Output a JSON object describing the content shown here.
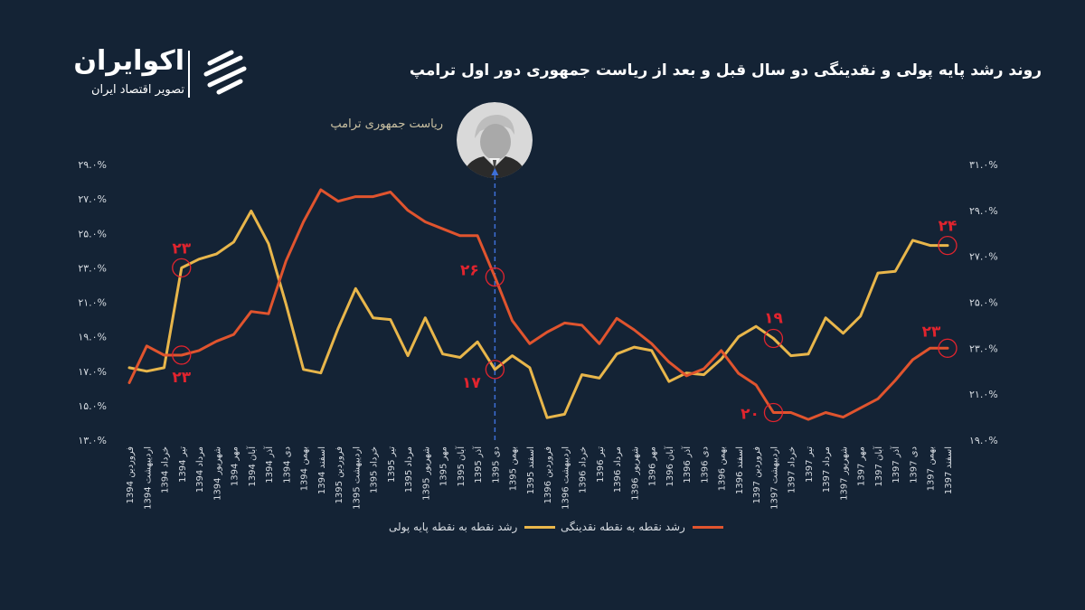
{
  "brand": {
    "name": "اکوایران",
    "tagline": "تصویر اقتصاد ایران"
  },
  "title": "روند رشد پایه پولی و نقدینگی دو سال قبل و بعد از ریاست جمهوری دور اول ترامپ",
  "annotation_label": "ریاست جمهوری ترامپ",
  "colors": {
    "background": "#142335",
    "base_money": "#e8b64b",
    "liquidity": "#e0542e",
    "marker": "#e0242e",
    "annotation_line": "#3d6fd8"
  },
  "chart_data": {
    "type": "line",
    "categories": [
      "فروردین 1394",
      "اردیبهشت 1394",
      "خرداد 1394",
      "تیر 1394",
      "مرداد 1394",
      "شهریور 1394",
      "مهر 1394",
      "آبان 1394",
      "آذر 1394",
      "دی 1394",
      "بهمن 1394",
      "اسفند 1394",
      "فروردین 1395",
      "اردیبهشت 1395",
      "خرداد 1395",
      "تیر 1395",
      "مرداد 1395",
      "شهریور 1395",
      "مهر 1395",
      "آبان 1395",
      "آذر 1395",
      "دی 1395",
      "بهمن 1395",
      "اسفند 1395",
      "فروردین 1396",
      "اردیبهشت 1396",
      "خرداد 1396",
      "تیر 1396",
      "مرداد 1396",
      "شهریور 1396",
      "مهر 1396",
      "آبان 1396",
      "آذر 1396",
      "دی 1396",
      "بهمن 1396",
      "اسفند 1396",
      "فروردین 1397",
      "اردیبهشت 1397",
      "خرداد 1397",
      "تیر 1397",
      "مرداد 1397",
      "شهریور 1397",
      "مهر 1397",
      "آبان 1397",
      "آذر 1397",
      "دی 1397",
      "بهمن 1397",
      "اسفند 1397"
    ],
    "left_axis": {
      "min": 13,
      "max": 29,
      "ticks": [
        "۱۳.۰%",
        "۱۵.۰%",
        "۱۷.۰%",
        "۱۹.۰%",
        "۲۱.۰%",
        "۲۳.۰%",
        "۲۵.۰%",
        "۲۷.۰%",
        "۲۹.۰%"
      ]
    },
    "right_axis": {
      "min": 19,
      "max": 31,
      "ticks": [
        "۱۹.۰%",
        "۲۱.۰%",
        "۲۳.۰%",
        "۲۵.۰%",
        "۲۷.۰%",
        "۲۹.۰%",
        "۳۱.۰%"
      ]
    },
    "series": [
      {
        "name": "رشد نقطه به نقطه پایه پولی",
        "axis": "left",
        "values": [
          17.2,
          17.0,
          17.2,
          23.0,
          23.5,
          23.8,
          24.5,
          26.3,
          24.4,
          20.9,
          17.1,
          16.9,
          19.5,
          21.8,
          20.1,
          20.0,
          17.9,
          20.1,
          18.0,
          17.8,
          18.7,
          17.1,
          17.9,
          17.2,
          14.3,
          14.5,
          16.8,
          16.6,
          18.0,
          18.4,
          18.2,
          16.4,
          16.9,
          16.8,
          17.7,
          19.0,
          19.6,
          18.9,
          17.9,
          18.0,
          20.1,
          19.2,
          20.2,
          22.7,
          22.8,
          24.6,
          24.3,
          24.3
        ],
        "labels": [
          {
            "index": 3,
            "text": "۲۳"
          },
          {
            "index": 21,
            "text": "۱۷"
          },
          {
            "index": 37,
            "text": "۱۹"
          },
          {
            "index": 47,
            "text": "۲۴"
          }
        ]
      },
      {
        "name": "رشد نقطه به نقطه نقدینگی",
        "axis": "right",
        "values": [
          21.5,
          23.1,
          22.7,
          22.7,
          22.9,
          23.3,
          23.6,
          24.6,
          24.5,
          26.8,
          28.5,
          29.9,
          29.4,
          29.6,
          29.6,
          29.8,
          29.0,
          28.5,
          28.2,
          27.9,
          27.9,
          26.1,
          24.2,
          23.2,
          23.7,
          24.1,
          24.0,
          23.2,
          24.3,
          23.8,
          23.2,
          22.4,
          21.8,
          22.1,
          22.9,
          21.9,
          21.4,
          20.2,
          20.2,
          19.9,
          20.2,
          20.0,
          20.4,
          20.8,
          21.6,
          22.5,
          23.0,
          23.0
        ],
        "labels": [
          {
            "index": 3,
            "text": "۲۳"
          },
          {
            "index": 21,
            "text": "۲۶"
          },
          {
            "index": 37,
            "text": "۲۰"
          },
          {
            "index": 47,
            "text": "۲۳"
          }
        ]
      }
    ],
    "event_index": 21
  }
}
